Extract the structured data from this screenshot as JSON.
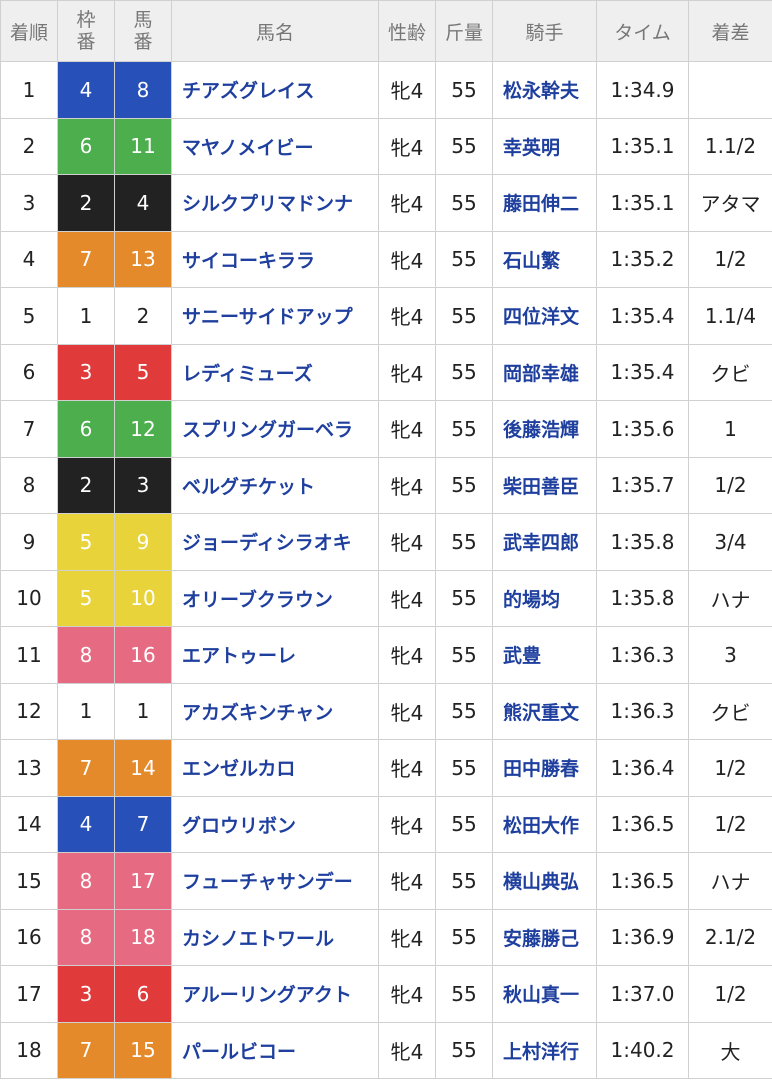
{
  "header": [
    "着順",
    "枠番",
    "馬番",
    "馬名",
    "性齢",
    "斤量",
    "騎手",
    "タイム",
    "着差"
  ],
  "rows": [
    [
      1,
      4,
      8,
      "チアズグレイス",
      "牝4",
      55,
      "松永幹夫",
      "1:34.9",
      null
    ],
    [
      2,
      6,
      11,
      "マヤノメイビー",
      "牝4",
      55,
      "幸英明",
      "1:35.1",
      "1.1/2"
    ],
    [
      3,
      2,
      4,
      "シルクプリマドンナ",
      "牝4",
      55,
      "藤田伸二",
      "1:35.1",
      "アタマ"
    ],
    [
      4,
      7,
      13,
      "サイコーキララ",
      "牝4",
      55,
      "石山繁",
      "1:35.2",
      "1/2"
    ],
    [
      5,
      1,
      2,
      "サニーサイドアップ",
      "牝4",
      55,
      "四位洋文",
      "1:35.4",
      "1.1/4"
    ],
    [
      6,
      3,
      5,
      "レディミューズ",
      "牝4",
      55,
      "岡部幸雄",
      "1:35.4",
      "クビ"
    ],
    [
      7,
      6,
      12,
      "スプリングガーベラ",
      "牝4",
      55,
      "後藤浩輝",
      "1:35.6",
      "1"
    ],
    [
      8,
      2,
      3,
      "ベルグチケット",
      "牝4",
      55,
      "柴田善臣",
      "1:35.7",
      "1/2"
    ],
    [
      9,
      5,
      9,
      "ジョーディシラオキ",
      "牝4",
      55,
      "武幸四郎",
      "1:35.8",
      "3/4"
    ],
    [
      10,
      5,
      10,
      "オリーブクラウン",
      "牝4",
      55,
      "的場均",
      "1:35.8",
      "ハナ"
    ],
    [
      11,
      8,
      16,
      "エアトゥーレ",
      "牝4",
      55,
      "武豊",
      "1:36.3",
      "3"
    ],
    [
      12,
      1,
      1,
      "アカズキンチャン",
      "牝4",
      55,
      "熊沢重文",
      "1:36.3",
      "クビ"
    ],
    [
      13,
      7,
      14,
      "エンゼルカロ",
      "牝4",
      55,
      "田中勝春",
      "1:36.4",
      "1/2"
    ],
    [
      14,
      4,
      7,
      "グロウリボン",
      "牝4",
      55,
      "松田大作",
      "1:36.5",
      "1/2"
    ],
    [
      15,
      8,
      17,
      "フューチャサンデー",
      "牝4",
      55,
      "横山典弘",
      "1:36.5",
      "ハナ"
    ],
    [
      16,
      8,
      18,
      "カシノエトワール",
      "牝4",
      55,
      "安藤勝己",
      "1:36.9",
      "2.1/2"
    ],
    [
      17,
      3,
      6,
      "アルーリングアクト",
      "牝4",
      55,
      "秋山真一",
      "1:37.0",
      "1/2"
    ],
    [
      18,
      7,
      15,
      "パールビコー",
      "牝4",
      55,
      "上村洋行",
      "1:40.2",
      "大"
    ]
  ]
}
